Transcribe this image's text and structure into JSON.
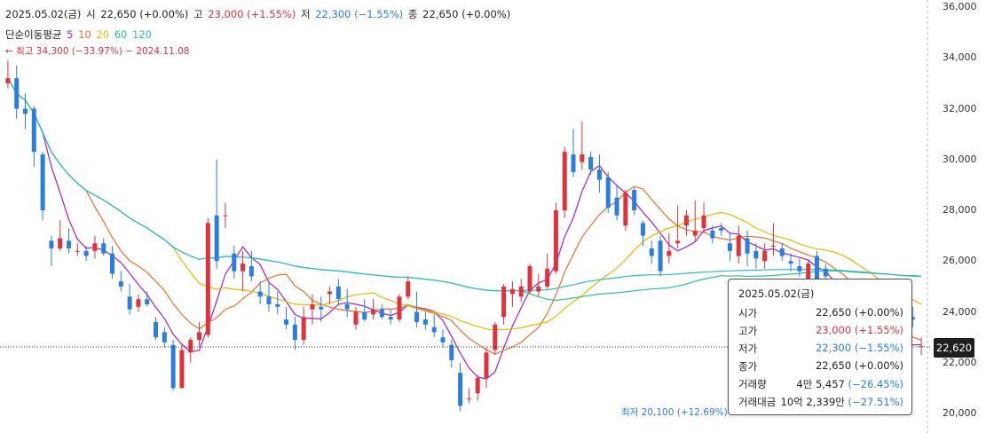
{
  "header": {
    "date": "2025.05.02(금)",
    "open_label": "시",
    "open_value": "22,650 (+0.00%)",
    "high_label": "고",
    "high_value": "23,000 (+1.55%)",
    "low_label": "저",
    "low_value": "22,300 (−1.55%)",
    "close_label": "종",
    "close_value": "22,650 (+0.00%)",
    "ma_label": "단순이동평균",
    "ma_periods": [
      "5",
      "10",
      "20",
      "60",
      "120"
    ],
    "high_note": "← 최고 34,300 (−33.97%) − 2024.11.08"
  },
  "low_note": "최저 20,100 (+12.69%) →",
  "price_tag": "22,620",
  "tooltip": {
    "date": "2025.05.02(금)",
    "rows": [
      {
        "label": "시가",
        "value": "22,650 (+0.00%)"
      },
      {
        "label": "고가",
        "value": "23,000 (+1.55%)"
      },
      {
        "label": "저가",
        "value": "22,300 (−1.55%)"
      },
      {
        "label": "종가",
        "value": "22,650 (+0.00%)"
      }
    ],
    "volume_label": "거래량",
    "volume_value": "4만 5,457",
    "volume_change": "(−26.45%)",
    "amount_label": "거래대금",
    "amount_value": "10억 2,339만",
    "amount_change": "(−27.51%)"
  },
  "colors": {
    "up": "#e0323c",
    "down": "#2b7de0",
    "ma5": "#a020c8",
    "ma10": "#e8702a",
    "ma20": "#e6b800",
    "ma60": "#2bc48a",
    "ma120": "#30b8c8"
  },
  "chart_data": {
    "type": "candlestick",
    "ylim": [
      20000,
      36300
    ],
    "y_ticks": [
      20000,
      22000,
      24000,
      26000,
      28000,
      30000,
      32000,
      34000,
      36000
    ],
    "y_tick_labels": [
      "20,000",
      "22,000",
      "24,000",
      "26,000",
      "28,000",
      "30,000",
      "32,000",
      "34,000",
      "36,000"
    ],
    "highest": {
      "value": 34300,
      "date": "2024.11.08"
    },
    "lowest": {
      "value": 20100
    },
    "last_price": 22620,
    "candles": [
      [
        33000,
        33900,
        32800,
        33200
      ],
      [
        33200,
        33700,
        31600,
        32000
      ],
      [
        32000,
        32600,
        31200,
        31800
      ],
      [
        32000,
        32100,
        29700,
        30300
      ],
      [
        30200,
        30300,
        27600,
        28000
      ],
      [
        26800,
        27000,
        25800,
        26500
      ],
      [
        26500,
        27600,
        26400,
        26900
      ],
      [
        26800,
        27300,
        26300,
        26500
      ],
      [
        26400,
        26700,
        26200,
        26400
      ],
      [
        26400,
        26600,
        26000,
        26200
      ],
      [
        26400,
        27000,
        26100,
        26700
      ],
      [
        26700,
        26900,
        26200,
        26300
      ],
      [
        26300,
        26600,
        25300,
        25500
      ],
      [
        25200,
        25600,
        24800,
        25000
      ],
      [
        24600,
        25100,
        23900,
        24100
      ],
      [
        24200,
        24700,
        24000,
        24500
      ],
      [
        24500,
        24800,
        24200,
        24300
      ],
      [
        23600,
        23800,
        22900,
        23000
      ],
      [
        23200,
        23400,
        22600,
        22800
      ],
      [
        22700,
        22900,
        20900,
        21000
      ],
      [
        21000,
        22700,
        21000,
        22500
      ],
      [
        22400,
        23000,
        22000,
        22900
      ],
      [
        22900,
        23600,
        22600,
        23200
      ],
      [
        23100,
        27700,
        23000,
        27500
      ],
      [
        27800,
        30000,
        25700,
        26000
      ],
      [
        27800,
        28300,
        27300,
        27800
      ],
      [
        26300,
        26600,
        25300,
        25600
      ],
      [
        25600,
        26400,
        24800,
        25900
      ],
      [
        25800,
        26400,
        25200,
        25400
      ],
      [
        24800,
        25200,
        24300,
        24600
      ],
      [
        24600,
        25200,
        24000,
        24300
      ],
      [
        24300,
        24800,
        23900,
        24200
      ],
      [
        23700,
        24200,
        23300,
        23500
      ],
      [
        23500,
        23800,
        22500,
        22900
      ],
      [
        22900,
        24200,
        22700,
        23800
      ],
      [
        24100,
        24700,
        23500,
        24300
      ],
      [
        24200,
        24600,
        23600,
        24100
      ],
      [
        24700,
        25000,
        24300,
        24800
      ],
      [
        25000,
        25300,
        24300,
        24500
      ],
      [
        24300,
        24900,
        23800,
        24100
      ],
      [
        23500,
        24200,
        23300,
        24000
      ],
      [
        24000,
        24500,
        23600,
        23700
      ],
      [
        23900,
        24500,
        23700,
        24100
      ],
      [
        24100,
        24300,
        23700,
        23800
      ],
      [
        23800,
        24100,
        23500,
        23700
      ],
      [
        23700,
        24700,
        23600,
        24600
      ],
      [
        24600,
        25400,
        24500,
        25200
      ],
      [
        24000,
        24800,
        23400,
        23600
      ],
      [
        23700,
        24000,
        23300,
        23500
      ],
      [
        23400,
        23900,
        23000,
        23200
      ],
      [
        23000,
        23300,
        22600,
        22800
      ],
      [
        22700,
        22900,
        21800,
        22100
      ],
      [
        21600,
        22000,
        20100,
        20300
      ],
      [
        20600,
        21000,
        20400,
        20600
      ],
      [
        20800,
        21500,
        20500,
        21400
      ],
      [
        21400,
        22600,
        21000,
        22400
      ],
      [
        22500,
        23600,
        22300,
        23500
      ],
      [
        23800,
        25100,
        23500,
        25000
      ],
      [
        24700,
        25200,
        24200,
        24900
      ],
      [
        24600,
        25300,
        24400,
        25000
      ],
      [
        24800,
        25900,
        24700,
        25800
      ],
      [
        24800,
        25500,
        24600,
        25000
      ],
      [
        25000,
        26300,
        24900,
        25700
      ],
      [
        25600,
        28300,
        25500,
        28000
      ],
      [
        28000,
        30500,
        27700,
        30300
      ],
      [
        30200,
        31200,
        29300,
        29500
      ],
      [
        29900,
        31500,
        29600,
        30200
      ],
      [
        30100,
        30300,
        29400,
        29600
      ],
      [
        29600,
        30200,
        28700,
        29200
      ],
      [
        29300,
        29500,
        27900,
        28100
      ],
      [
        28500,
        29000,
        27600,
        27800
      ],
      [
        27400,
        28800,
        27200,
        28700
      ],
      [
        28800,
        28900,
        27800,
        28000
      ],
      [
        27500,
        27600,
        26600,
        27000
      ],
      [
        26500,
        26800,
        25900,
        26200
      ],
      [
        26800,
        27000,
        25400,
        25600
      ],
      [
        26200,
        27100,
        25900,
        26400
      ],
      [
        26700,
        28200,
        26500,
        26800
      ],
      [
        27400,
        28000,
        27000,
        27800
      ],
      [
        27000,
        28400,
        26800,
        27200
      ],
      [
        27300,
        28300,
        27100,
        27800
      ],
      [
        27200,
        27400,
        26700,
        26900
      ],
      [
        27300,
        27500,
        27000,
        27200
      ],
      [
        26700,
        27100,
        26000,
        26400
      ],
      [
        26200,
        27400,
        25900,
        27000
      ],
      [
        26900,
        27200,
        25800,
        26300
      ],
      [
        26400,
        26700,
        25700,
        26100
      ],
      [
        26000,
        26700,
        25700,
        26400
      ],
      [
        26600,
        27500,
        26200,
        26600
      ],
      [
        26500,
        26700,
        26000,
        26200
      ],
      [
        26000,
        26300,
        25600,
        25900
      ],
      [
        25800,
        26100,
        25400,
        25600
      ],
      [
        25100,
        26000,
        24900,
        25900
      ],
      [
        26200,
        26400,
        25000,
        25200
      ],
      [
        25700,
        25900,
        25300,
        25400
      ],
      [
        24200,
        24400,
        23700,
        23900
      ],
      [
        23800,
        24200,
        23500,
        23700
      ],
      [
        23500,
        23800,
        23000,
        23200
      ],
      [
        23100,
        23500,
        22700,
        23000
      ],
      [
        22900,
        23300,
        22600,
        22800
      ],
      [
        23000,
        23200,
        22400,
        22600
      ],
      [
        22700,
        23000,
        22300,
        22500
      ],
      [
        22500,
        22800,
        22200,
        22400
      ],
      [
        22400,
        22700,
        22100,
        22300
      ],
      [
        23800,
        24200,
        23400,
        23700
      ],
      [
        22650,
        23000,
        22300,
        22650
      ]
    ],
    "ma": [
      {
        "name": "5",
        "period": 5
      },
      {
        "name": "10",
        "period": 10
      },
      {
        "name": "20",
        "period": 20
      },
      {
        "name": "60",
        "period": 60
      },
      {
        "name": "120",
        "period": 120
      }
    ]
  }
}
